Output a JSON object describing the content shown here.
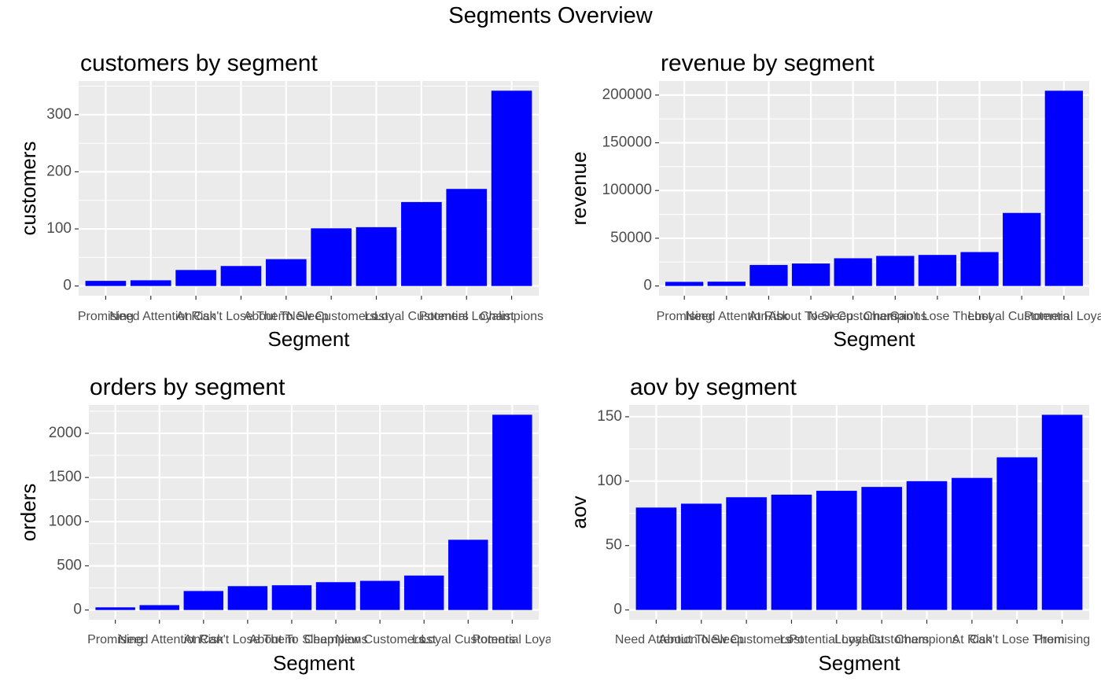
{
  "title": "Segments Overview",
  "colors": {
    "bar": "#0000FF",
    "panel_bg": "#EBEBEB",
    "grid": "#FFFFFF",
    "axis_text": "#4D4D4D"
  },
  "chart_data": [
    {
      "type": "bar",
      "title": "customers by segment",
      "xlabel": "Segment",
      "ylabel": "customers",
      "categories": [
        "Promising",
        "Need Attention",
        "At Risk",
        "Can't Lose Them",
        "About To Sleep",
        "New Customers",
        "Lost",
        "Loyal Customers",
        "Potential Loyalist",
        "Champions"
      ],
      "values": [
        9,
        10,
        28,
        35,
        47,
        101,
        103,
        147,
        170,
        342
      ],
      "yticks": [
        0,
        100,
        200,
        300
      ],
      "ylim": [
        -17,
        359
      ],
      "grid": true
    },
    {
      "type": "bar",
      "title": "revenue by segment",
      "xlabel": "Segment",
      "ylabel": "revenue",
      "categories": [
        "Promising",
        "Need Attention",
        "At Risk",
        "About To Sleep",
        "New Customers",
        "Champions",
        "Can't Lose Them",
        "Lost",
        "Loyal Customers",
        "Potential Loya"
      ],
      "values": [
        4300,
        4500,
        22000,
        23500,
        29000,
        31500,
        32500,
        35500,
        76500,
        204500
      ],
      "yticks": [
        0,
        50000,
        100000,
        150000,
        200000
      ],
      "ylim": [
        -10200,
        214700
      ],
      "grid": true
    },
    {
      "type": "bar",
      "title": "orders by segment",
      "xlabel": "Segment",
      "ylabel": "orders",
      "categories": [
        "Promising",
        "Need Attention",
        "At Risk",
        "Can't Lose Them",
        "About To Sleep",
        "Champions",
        "New Customers",
        "Lost",
        "Loyal Customers",
        "Potential Loya"
      ],
      "values": [
        30,
        55,
        215,
        270,
        280,
        315,
        330,
        390,
        795,
        2210
      ],
      "yticks": [
        0,
        500,
        1000,
        1500,
        2000
      ],
      "ylim": [
        -110,
        2320
      ],
      "grid": true
    },
    {
      "type": "bar",
      "title": "aov by segment",
      "xlabel": "Segment",
      "ylabel": "aov",
      "categories": [
        "Need Attention",
        "About To Sleep",
        "New Customers",
        "Lost",
        "Potential Loyalist",
        "Loyal Customers",
        "Champions",
        "At Risk",
        "Can't Lose Them",
        "Promising"
      ],
      "values": [
        79.5,
        82.5,
        87.5,
        89.5,
        92.5,
        95.5,
        100,
        102.5,
        118.5,
        151.5
      ],
      "yticks": [
        0,
        50,
        100,
        150
      ],
      "ylim": [
        -7.6,
        159.1
      ],
      "grid": true
    }
  ]
}
